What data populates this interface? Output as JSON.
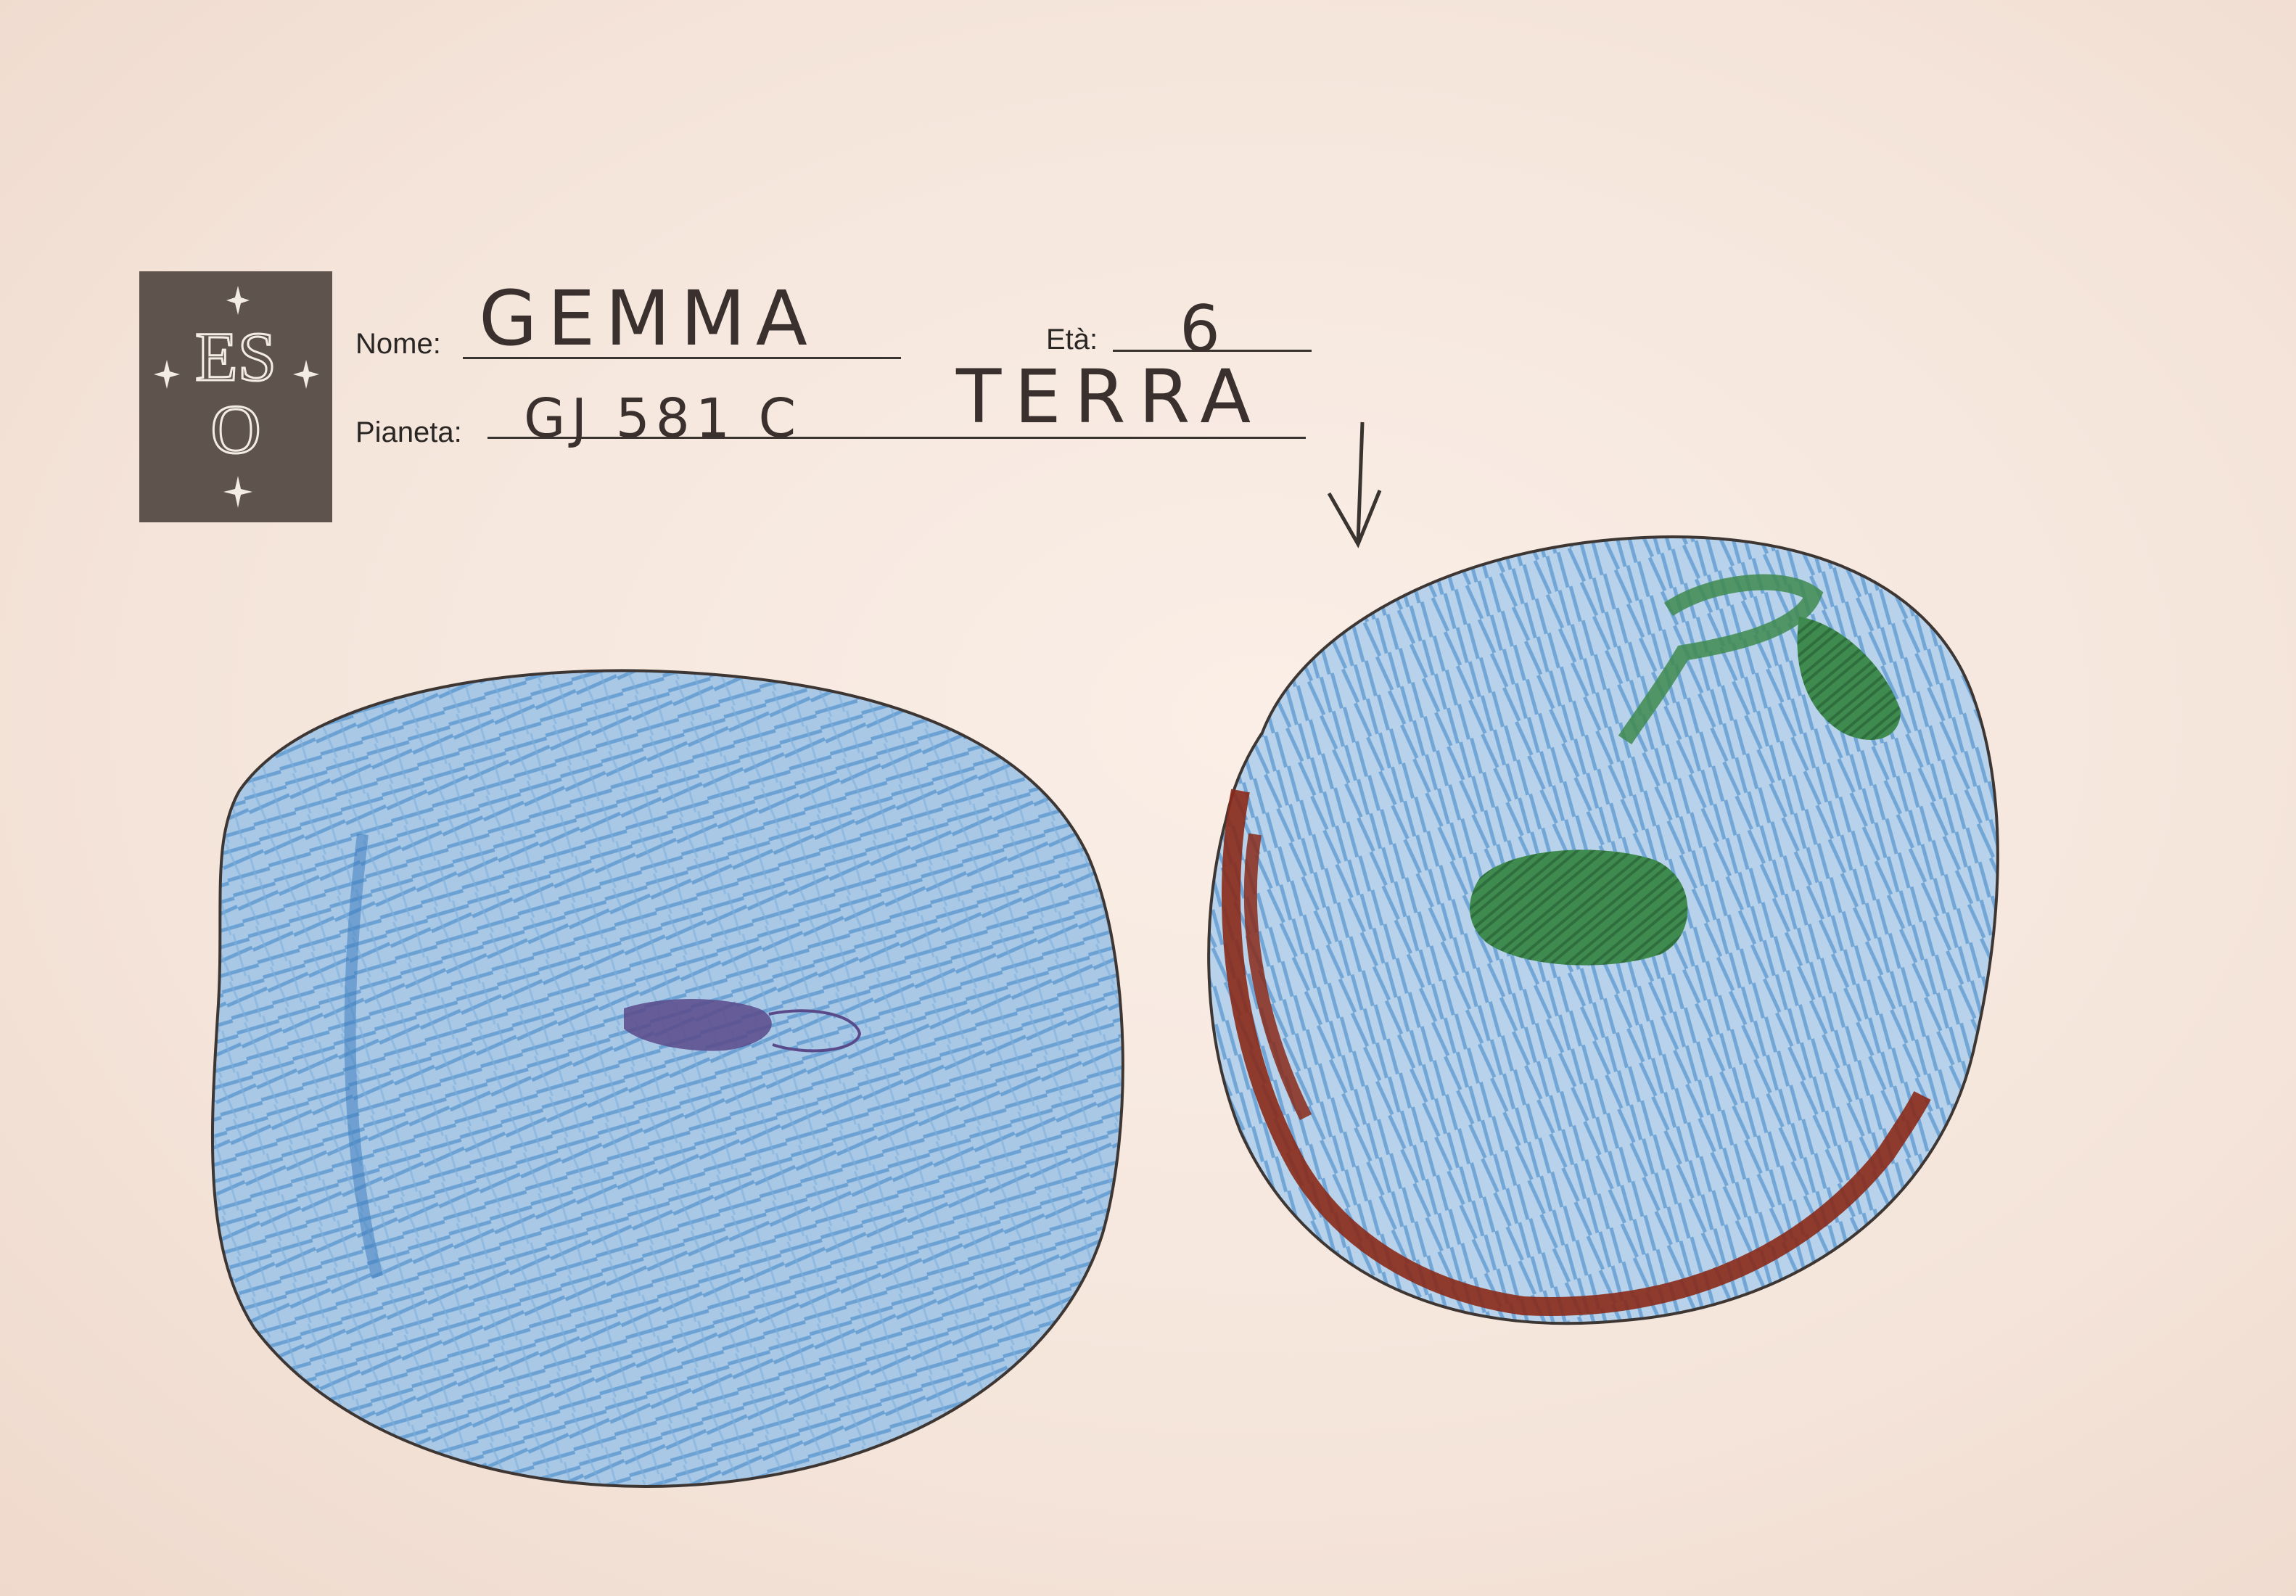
{
  "logo": {
    "text_e": "E",
    "text_s": "S",
    "text_o": "O"
  },
  "form": {
    "name_label": "Nome:",
    "name_value": "GEMMA",
    "age_label": "Età:",
    "age_value": "6",
    "planet_label": "Pianeta:",
    "planet_value": "GJ 581 C",
    "planet_extra": "TERRA"
  },
  "colors": {
    "paper": "#f5e6dc",
    "crayon_blue": "#5b97cf",
    "crayon_green": "#3f8a4f",
    "crayon_brown": "#8a2a1a",
    "crayon_purple": "#5a4a8a",
    "pencil": "#3a3431"
  },
  "drawing": {
    "arrow_icon": "down-arrow-icon",
    "planet_left": "planet-gj581c",
    "planet_right": "planet-earth"
  }
}
